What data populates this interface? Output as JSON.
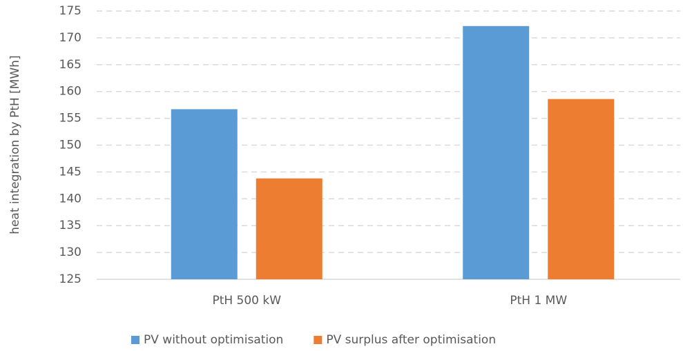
{
  "chart_data": {
    "type": "bar",
    "y_label": "heat integration by PtH [MWh]",
    "categories": [
      "PtH 500 kW",
      "PtH 1 MW"
    ],
    "series": [
      {
        "name": "PV without optimisation",
        "color": "#5b9bd5",
        "values": [
          156.7,
          172.2
        ]
      },
      {
        "name": "PV surplus after optimisation",
        "color": "#ed7d31",
        "values": [
          143.8,
          158.6
        ]
      }
    ],
    "ylim": [
      125,
      175
    ],
    "yticks": [
      125,
      130,
      135,
      140,
      145,
      150,
      155,
      160,
      165,
      170,
      175
    ],
    "grid": true,
    "legend": "bottom"
  }
}
